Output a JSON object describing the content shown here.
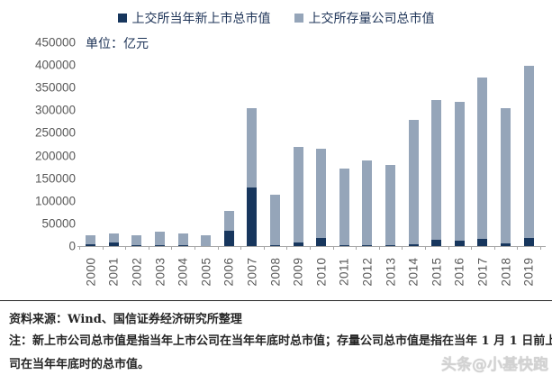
{
  "legend": {
    "items": [
      {
        "label": "上交所当年新上市总市值",
        "color": "#17365d"
      },
      {
        "label": "上交所存量公司总市值",
        "color": "#95a5b9"
      }
    ]
  },
  "unit_label": "单位：亿元",
  "chart_data": {
    "type": "bar",
    "stacked": true,
    "title": "",
    "xlabel": "",
    "ylabel": "单位：亿元",
    "ylim": [
      0,
      450000
    ],
    "ytick_step": 50000,
    "grid": false,
    "legend_position": "top",
    "categories": [
      "2000",
      "2001",
      "2002",
      "2003",
      "2004",
      "2005",
      "2006",
      "2007",
      "2008",
      "2009",
      "2010",
      "2011",
      "2012",
      "2013",
      "2014",
      "2015",
      "2016",
      "2017",
      "2018",
      "2019"
    ],
    "series": [
      {
        "name": "上交所当年新上市总市值",
        "color": "#17365d",
        "values": [
          4000,
          8000,
          1500,
          1500,
          2000,
          500,
          34000,
          130000,
          3000,
          7500,
          18000,
          3000,
          2500,
          1500,
          5000,
          13000,
          12000,
          16000,
          6000,
          18000
        ]
      },
      {
        "name": "上交所存量公司总市值",
        "color": "#95a5b9",
        "values": [
          20000,
          20000,
          22500,
          31000,
          25500,
          23500,
          44000,
          175000,
          111000,
          211500,
          197000,
          169000,
          186500,
          178500,
          273000,
          310000,
          306000,
          356000,
          299000,
          380000
        ]
      }
    ]
  },
  "footer": {
    "source": "资料来源：Wind、国信证券经济研究所整理",
    "note_line1": "注：新上市公司总市值是指当年上市公司在当年年底时总市值；存量公司总市值是指在当年 1 月 1 日前上市公",
    "note_line2": "司在当年年底时的总市值。"
  },
  "watermark": "头条@小基快跑"
}
